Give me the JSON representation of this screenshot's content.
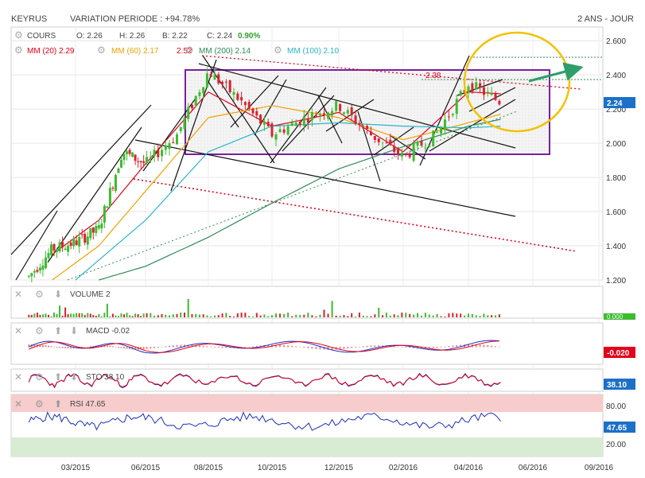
{
  "header": {
    "ticker": "KEYRUS",
    "variation_label": "VARIATION PERIODE : +94.78%",
    "period": "2 ANS - JOUR"
  },
  "price_panel": {
    "cours_label": "COURS",
    "open": "O: 2.26",
    "high": "H: 2.26",
    "low": "B: 2.22",
    "close": "C: 2.24",
    "change": "0.90%",
    "ma20": "MM (20) 2.29",
    "ma60": "MM (60) 2.17",
    "ma200": "MM (200) 2.14",
    "ma100": "MM (100) 2.10",
    "last_price_tag": "2.24",
    "annot_252": "2.52",
    "annot_238": "2.38"
  },
  "volume_panel": {
    "label": "VOLUME 2",
    "tag": "0.000"
  },
  "macd_panel": {
    "label": "MACD -0.02",
    "tag": "-0.020"
  },
  "sto_panel": {
    "label": "STO 38.10",
    "tag": "38.10"
  },
  "rsi_panel": {
    "label": "RSI 47.65",
    "tag": "47.65",
    "upper": "80.00",
    "lower": "20.00"
  },
  "colors": {
    "ma20": "#e2001a",
    "ma60": "#f3a100",
    "ma100": "#29b6c8",
    "ma200": "#2e8b57",
    "candle_up": "#3dbb2f",
    "candle_down": "#d9232e",
    "rectangle": "#7b1fa2",
    "ellipse": "#f2c200",
    "arrow": "#2e9e6b",
    "price_tag": "#1c70c8",
    "neg_tag": "#e2001a"
  },
  "chart_data": {
    "type": "line",
    "title": "KEYRUS",
    "x_ticks": [
      "03/2015",
      "06/2015",
      "08/2015",
      "10/2015",
      "12/2015",
      "02/2016",
      "04/2016",
      "06/2016",
      "09/2016"
    ],
    "y_ticks": [
      1.2,
      1.4,
      1.6,
      1.8,
      2.0,
      2.2,
      2.4,
      2.6
    ],
    "ylim": [
      1.2,
      2.68
    ],
    "series": [
      {
        "name": "COURS",
        "x": [
          "01/2015",
          "02/2015",
          "03/2015",
          "04/2015",
          "05/2015",
          "06/2015",
          "07/2015",
          "08/2015",
          "09/2015",
          "10/2015",
          "11/2015",
          "12/2015",
          "01/2016",
          "02/2016",
          "03/2016",
          "04/2016",
          "05/2016"
        ],
        "values": [
          1.22,
          1.38,
          1.42,
          1.5,
          1.95,
          1.88,
          2.05,
          2.42,
          2.25,
          2.05,
          2.15,
          2.22,
          2.05,
          1.92,
          2.05,
          2.35,
          2.24
        ]
      },
      {
        "name": "MM (20)",
        "x": [
          "02/2015",
          "04/2015",
          "06/2015",
          "08/2015",
          "10/2015",
          "12/2015",
          "02/2016",
          "04/2016",
          "05/2016"
        ],
        "values": [
          1.35,
          1.55,
          1.88,
          2.3,
          2.1,
          2.18,
          1.95,
          2.3,
          2.29
        ]
      },
      {
        "name": "MM (60)",
        "x": [
          "02/2015",
          "04/2015",
          "06/2015",
          "08/2015",
          "10/2015",
          "12/2015",
          "02/2016",
          "04/2016",
          "05/2016"
        ],
        "values": [
          1.2,
          1.4,
          1.72,
          2.15,
          2.22,
          2.15,
          2.02,
          2.12,
          2.17
        ]
      },
      {
        "name": "MM (100)",
        "x": [
          "03/2015",
          "06/2015",
          "08/2015",
          "10/2015",
          "12/2015",
          "02/2016",
          "04/2016",
          "05/2016"
        ],
        "values": [
          1.2,
          1.55,
          1.95,
          2.1,
          2.12,
          2.1,
          2.09,
          2.1
        ]
      },
      {
        "name": "MM (200)",
        "x": [
          "04/2015",
          "06/2015",
          "08/2015",
          "10/2015",
          "12/2015",
          "02/2016",
          "04/2016",
          "05/2016"
        ],
        "values": [
          1.2,
          1.28,
          1.45,
          1.65,
          1.85,
          1.98,
          2.1,
          2.14
        ]
      }
    ]
  }
}
